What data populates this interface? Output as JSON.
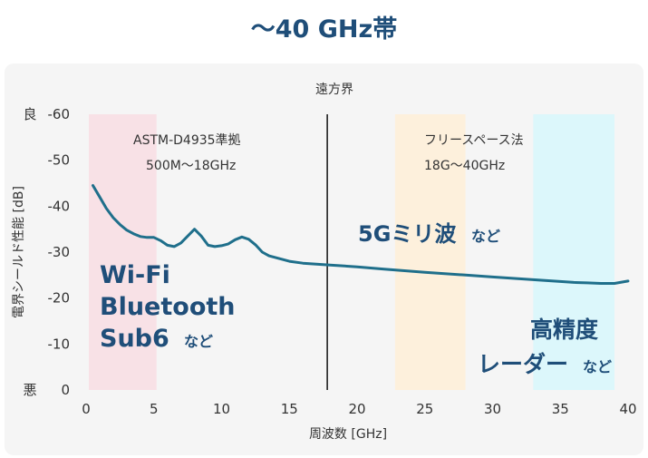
{
  "title": "～40 GHz帯",
  "colors": {
    "title": "#1f4e79",
    "line": "#1f6f8b",
    "band_pink": "#f8e1e6",
    "band_orange": "#fdf0dc",
    "band_cyan": "#dcf7fb"
  },
  "chart_data": {
    "type": "line",
    "title": "遠方界",
    "xlabel": "周波数 [GHz]",
    "ylabel": "電界シールド性能 [dB]",
    "xlim": [
      0,
      40
    ],
    "ylim": [
      0,
      -60
    ],
    "xticks": [
      0,
      5,
      10,
      15,
      20,
      25,
      30,
      35,
      40
    ],
    "yticks": [
      -60,
      -50,
      -40,
      -30,
      -20,
      -10,
      0
    ],
    "y_top_qualifier": "良",
    "y_bottom_qualifier": "悪",
    "grid": false,
    "divider_x": 17.8,
    "series": [
      {
        "x": [
          0.5,
          1,
          1.5,
          2,
          2.5,
          3,
          3.5,
          4,
          4.5,
          5,
          5.5,
          6,
          6.5,
          7,
          7.5,
          8,
          8.5,
          9,
          9.5,
          10,
          10.5,
          11,
          11.5,
          12,
          12.5,
          13,
          13.5,
          14,
          15,
          16,
          17,
          18,
          20,
          22,
          25,
          28,
          30,
          33,
          35,
          36,
          37,
          38,
          39,
          40
        ],
        "y": [
          -44.5,
          -42,
          -39.5,
          -37.5,
          -36,
          -34.8,
          -34,
          -33.4,
          -33.2,
          -33.2,
          -32.5,
          -31.5,
          -31.2,
          -32,
          -33.5,
          -35,
          -33.5,
          -31.5,
          -31.2,
          -31.4,
          -31.8,
          -32.7,
          -33.3,
          -32.8,
          -31.6,
          -30,
          -29.2,
          -28.8,
          -28,
          -27.6,
          -27.4,
          -27.2,
          -26.8,
          -26.3,
          -25.6,
          -25,
          -24.6,
          -24,
          -23.6,
          -23.4,
          -23.3,
          -23.2,
          -23.2,
          -23.7
        ]
      }
    ],
    "bands": [
      {
        "name": "pink",
        "x0": 0.2,
        "x1": 5.2
      },
      {
        "name": "orange",
        "x0": 22.8,
        "x1": 28
      },
      {
        "name": "cyan",
        "x0": 33,
        "x1": 39
      }
    ],
    "annotations": {
      "astm_line1": "ASTM-D4935準拠",
      "astm_line2": "500M～18GHz",
      "free_line1": "フリースペース法",
      "free_line2": "18G～40GHz",
      "wifi_l1": "Wi-Fi",
      "wifi_l2": "Bluetooth",
      "wifi_l3": "Sub6",
      "wifi_nado": "など",
      "g5_main": "5Gミリ波",
      "g5_nado": "など",
      "radar_l1": "高精度",
      "radar_l2": "レーダー",
      "radar_nado": "など"
    }
  }
}
